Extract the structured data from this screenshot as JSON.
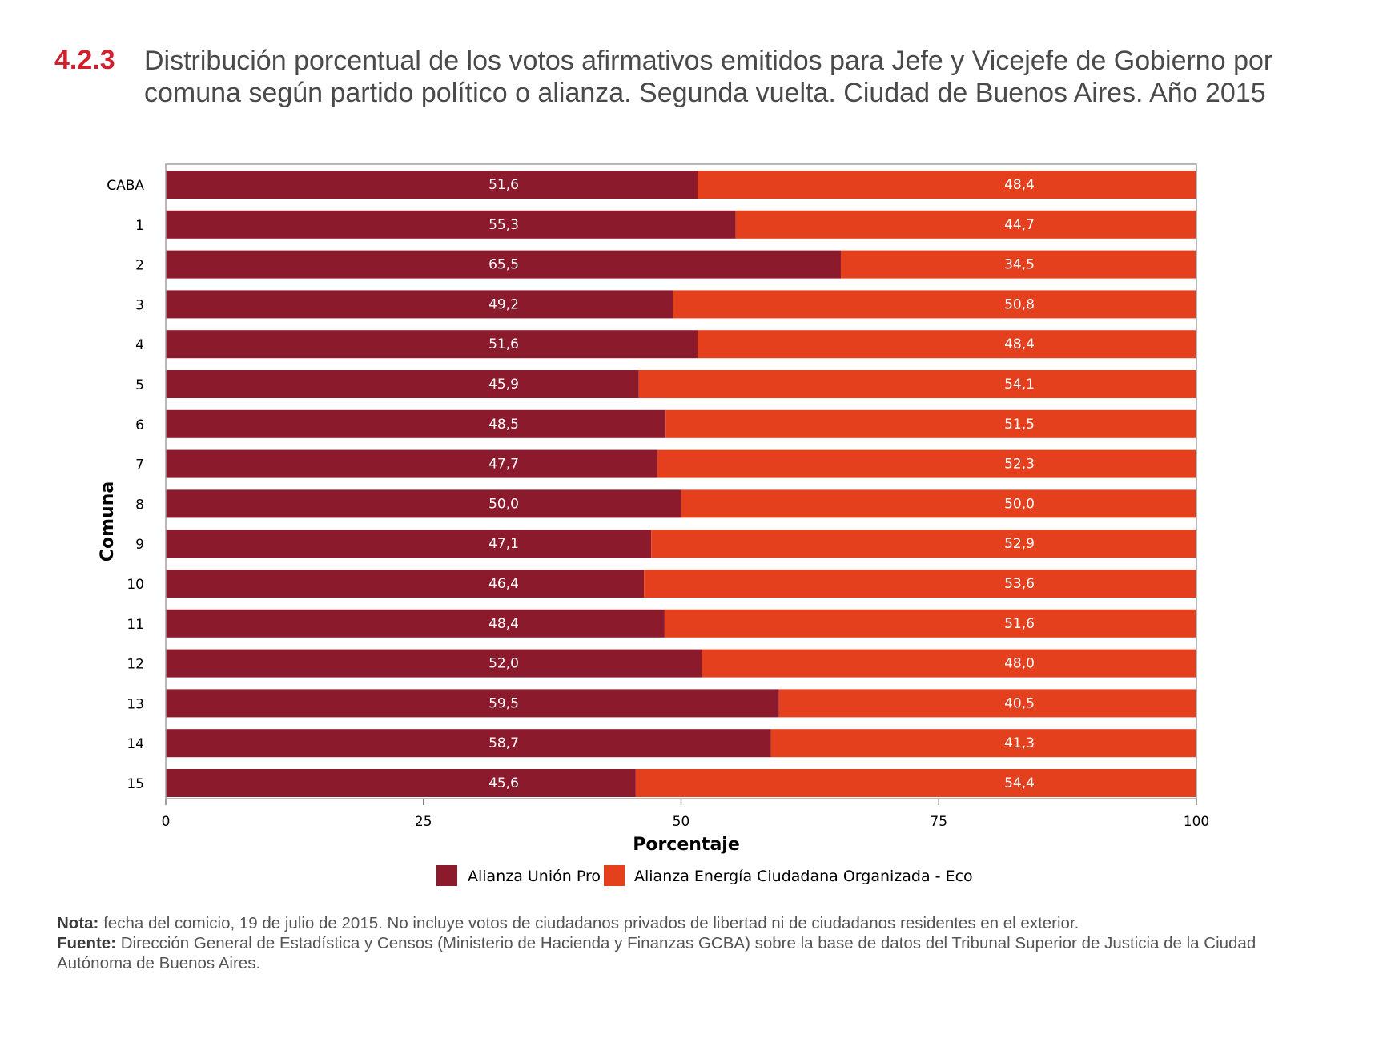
{
  "title": {
    "number": "4.2.3",
    "text": "Distribución porcentual de los votos afirmativos emitidos para Jefe y Vicejefe de Gobierno por comuna según partido político o alianza. Segunda vuelta. Ciudad de Buenos Aires. Año 2015"
  },
  "notes": {
    "nota_label": "Nota:",
    "nota_text": "fecha del comicio, 19 de julio de 2015. No incluye votos de ciudadanos privados de libertad ni de ciudadanos residentes en el exterior.",
    "fuente_label": "Fuente:",
    "fuente_text": "Dirección General de Estadística y Censos (Ministerio de Hacienda y Finanzas GCBA) sobre la base de datos del Tribunal Superior de Justicia de la Ciudad Autónoma de Buenos Aires."
  },
  "chart_data": {
    "type": "bar",
    "orientation": "horizontal",
    "stacked": true,
    "xlabel": "Porcentaje",
    "ylabel": "Comuna",
    "xlim": [
      0,
      100
    ],
    "xticks": [
      "0",
      "25",
      "50",
      "75",
      "100"
    ],
    "xtick_values": [
      0,
      25,
      50,
      75,
      100
    ],
    "grid": false,
    "legend_position": "bottom",
    "categories": [
      "CABA",
      "1",
      "2",
      "3",
      "4",
      "5",
      "6",
      "7",
      "8",
      "9",
      "10",
      "11",
      "12",
      "13",
      "14",
      "15"
    ],
    "series": [
      {
        "name": "Alianza Unión Pro",
        "color": "#8b1a2c",
        "values": [
          51.6,
          55.3,
          65.5,
          49.2,
          51.6,
          45.9,
          48.5,
          47.7,
          50.0,
          47.1,
          46.4,
          48.4,
          52.0,
          59.5,
          58.7,
          45.6
        ],
        "labels": [
          "51,6",
          "55,3",
          "65,5",
          "49,2",
          "51,6",
          "45,9",
          "48,5",
          "47,7",
          "50,0",
          "47,1",
          "46,4",
          "48,4",
          "52,0",
          "59,5",
          "58,7",
          "45,6"
        ]
      },
      {
        "name": "Alianza Energía Ciudadana Organizada - Eco",
        "color": "#e5401e",
        "values": [
          48.4,
          44.7,
          34.5,
          50.8,
          48.4,
          54.1,
          51.5,
          52.3,
          50.0,
          52.9,
          53.6,
          51.6,
          48.0,
          40.5,
          41.3,
          54.4
        ],
        "labels": [
          "48,4",
          "44,7",
          "34,5",
          "50,8",
          "48,4",
          "54,1",
          "51,5",
          "52,3",
          "50,0",
          "52,9",
          "53,6",
          "51,6",
          "48,0",
          "40,5",
          "41,3",
          "54,4"
        ]
      }
    ]
  }
}
